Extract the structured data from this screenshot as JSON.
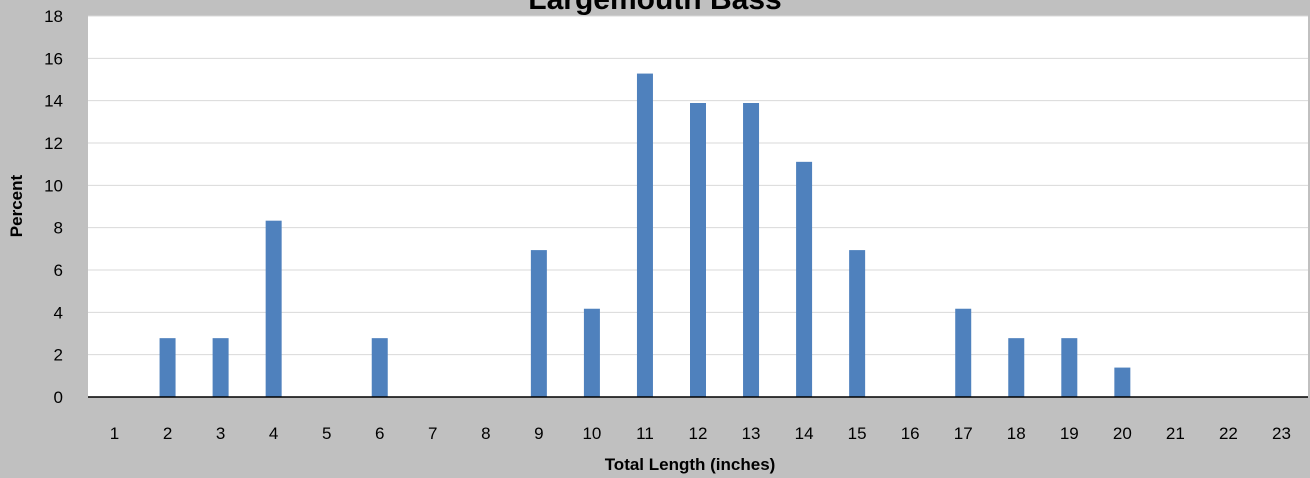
{
  "chart_data": {
    "type": "bar",
    "title": "Largemouth Bass",
    "xlabel": "Total Length (inches)",
    "ylabel": "Percent",
    "categories": [
      "1",
      "2",
      "3",
      "4",
      "5",
      "6",
      "7",
      "8",
      "9",
      "10",
      "11",
      "12",
      "13",
      "14",
      "15",
      "16",
      "17",
      "18",
      "19",
      "20",
      "21",
      "22",
      "23"
    ],
    "series": [
      {
        "values": [
          0,
          2.78,
          2.78,
          8.33,
          0,
          2.78,
          0,
          0,
          6.94,
          4.17,
          15.28,
          13.89,
          13.89,
          11.11,
          6.94,
          0,
          4.17,
          2.78,
          2.78,
          1.39,
          0,
          0,
          0
        ],
        "color": "#4f81bd"
      }
    ],
    "ylim": [
      0,
      18
    ],
    "yticks": [
      0,
      2,
      4,
      6,
      8,
      10,
      12,
      14,
      16,
      18
    ],
    "grid": true,
    "legend": "none",
    "background_color": "#c0c0c0",
    "plot_background_color": "#ffffff",
    "gridline_color": "#d9d9d9"
  }
}
